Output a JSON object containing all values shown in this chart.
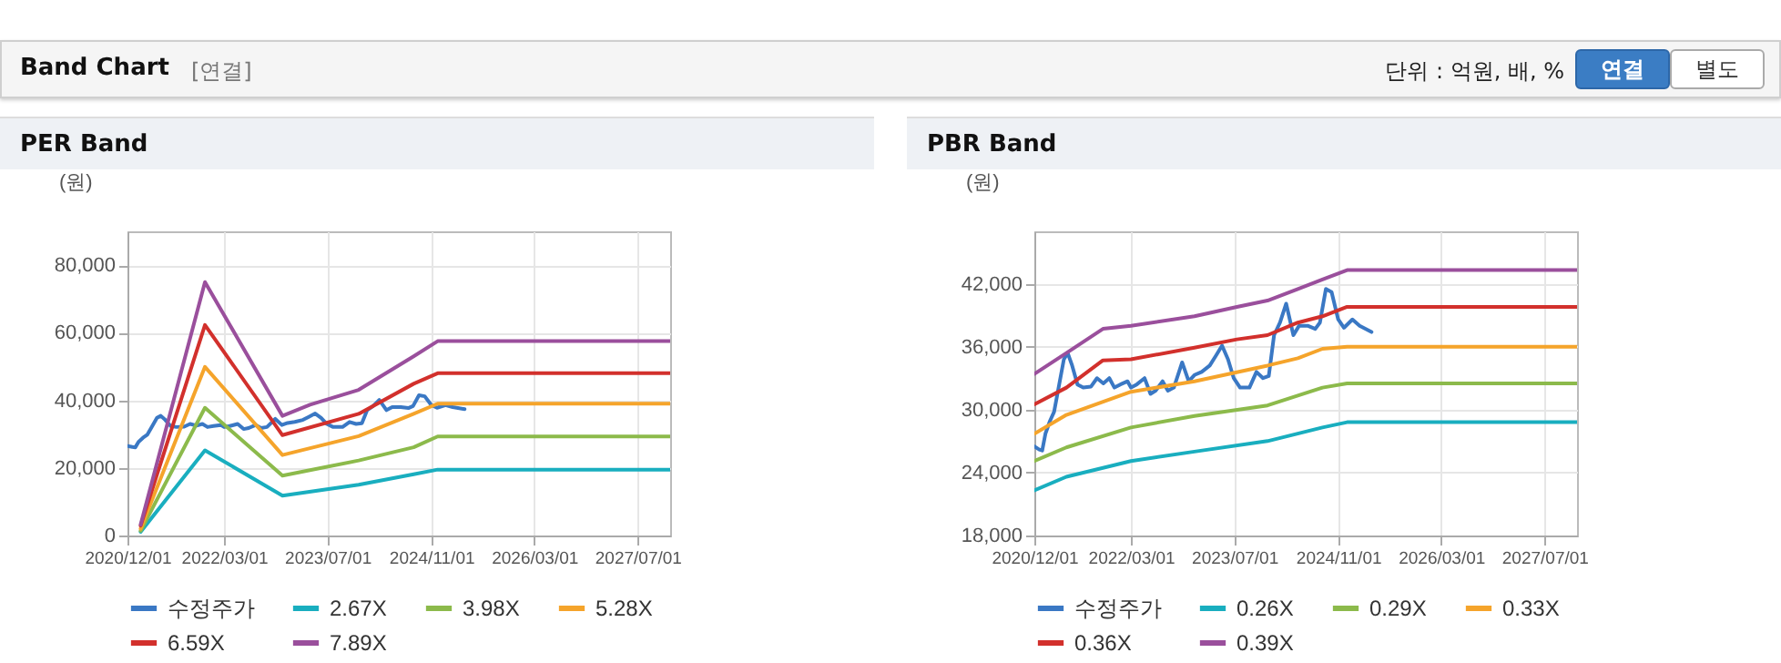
{
  "chart_data": [
    {
      "type": "line",
      "title": "PER Band",
      "ylabel": "(원)",
      "annotations": [
        "Band Chart",
        "[연결]",
        "단위 : 억원, 배, %",
        "연결",
        "별도"
      ],
      "xlim": [
        "2020-12-01",
        "2027-12-01"
      ],
      "xticks": [
        {
          "value": "2020-12-01",
          "label": "2020/12/01"
        },
        {
          "value": "2022-03-01",
          "label": "2022/03/01"
        },
        {
          "value": "2023-07-01",
          "label": "2023/07/01"
        },
        {
          "value": "2024-11-01",
          "label": "2024/11/01"
        },
        {
          "value": "2026-03-01",
          "label": "2026/03/01"
        },
        {
          "value": "2027-07-01",
          "label": "2027/07/01"
        }
      ],
      "ylim": [
        0,
        90000
      ],
      "yticks": [
        0,
        {
          "value": 20000,
          "label": "20,000"
        },
        {
          "value": 40000,
          "label": "40,000"
        },
        {
          "value": 60000,
          "label": "60,000"
        },
        {
          "value": 80000,
          "label": "80,000"
        }
      ],
      "grid": true,
      "legend": "bottom",
      "line_style": "solid",
      "marker": "none",
      "series": [
        {
          "name": "수정주가",
          "color": "#3a78c4",
          "x": [
            "2020-12-01",
            "2020-12-24",
            "2021-01-07",
            "2021-01-22",
            "2021-02-12",
            "2021-03-04",
            "2021-03-28",
            "2021-04-19",
            "2021-05-07",
            "2021-05-28",
            "2021-06-22",
            "2021-07-19",
            "2021-08-25",
            "2021-09-22",
            "2021-10-22",
            "2021-11-19",
            "2021-12-13",
            "2022-01-10",
            "2022-02-13",
            "2022-03-01",
            "2022-03-28",
            "2022-05-04",
            "2022-06-01",
            "2022-06-25",
            "2022-07-28",
            "2022-08-22",
            "2022-09-19",
            "2022-10-28",
            "2022-11-28",
            "2022-12-25",
            "2023-01-28",
            "2023-03-07",
            "2023-04-04",
            "2023-05-04",
            "2023-06-01",
            "2023-06-28",
            "2023-07-28",
            "2023-09-10",
            "2023-10-13",
            "2023-11-13",
            "2023-12-10",
            "2024-01-04",
            "2024-02-01",
            "2024-03-01",
            "2024-04-04",
            "2024-05-01",
            "2024-06-10",
            "2024-07-16",
            "2024-08-07",
            "2024-09-04",
            "2024-10-01",
            "2024-11-01",
            "2024-11-28",
            "2025-01-07",
            "2025-02-10",
            "2025-04-07"
          ],
          "values": [
            26500,
            26200,
            26100,
            27700,
            28900,
            29800,
            32400,
            34800,
            35400,
            34200,
            32400,
            32100,
            32200,
            33000,
            32500,
            33000,
            32100,
            32400,
            32700,
            32100,
            32400,
            33000,
            31500,
            31800,
            32700,
            31800,
            32100,
            34500,
            32700,
            33300,
            33600,
            34200,
            35100,
            36100,
            34800,
            33000,
            32100,
            32100,
            33600,
            33000,
            33200,
            37100,
            38300,
            40100,
            37100,
            38000,
            38000,
            37700,
            38300,
            41500,
            41200,
            38600,
            37800,
            38600,
            38000,
            37400
          ]
        },
        {
          "name": "2.67X",
          "color": "#19aebf",
          "x": [
            "2021-02-01",
            "2021-12-01",
            "2022-12-01",
            "2023-11-25",
            "2024-08-10",
            "2024-12-01",
            "2027-12-01"
          ],
          "values": [
            1100,
            25200,
            11800,
            15000,
            18100,
            19500,
            19500
          ]
        },
        {
          "name": "3.98X",
          "color": "#8cba4b",
          "x": [
            "2021-02-01",
            "2021-12-01",
            "2022-12-01",
            "2023-11-25",
            "2024-08-10",
            "2024-12-01",
            "2027-12-01"
          ],
          "values": [
            1400,
            37800,
            17700,
            22200,
            26100,
            29300,
            29300
          ]
        },
        {
          "name": "5.28X",
          "color": "#f5a42b",
          "x": [
            "2021-02-01",
            "2021-12-01",
            "2022-12-01",
            "2023-11-25",
            "2024-08-10",
            "2024-12-01",
            "2027-12-01"
          ],
          "values": [
            2000,
            49900,
            23800,
            29400,
            36000,
            39000,
            39000
          ]
        },
        {
          "name": "6.59X",
          "color": "#d2302c",
          "x": [
            "2021-02-01",
            "2021-12-01",
            "2022-12-01",
            "2023-11-25",
            "2024-08-10",
            "2024-12-01",
            "2027-12-01"
          ],
          "values": [
            2900,
            62300,
            29700,
            36000,
            44900,
            48000,
            48000
          ]
        },
        {
          "name": "7.89X",
          "color": "#9a4f9c",
          "x": [
            "2021-02-01",
            "2021-12-01",
            "2022-12-01",
            "2023-04-10",
            "2023-11-25",
            "2024-08-10",
            "2024-12-01",
            "2027-12-01"
          ],
          "values": [
            3200,
            75000,
            35400,
            38700,
            43100,
            53000,
            57500,
            57500
          ]
        }
      ]
    },
    {
      "type": "line",
      "title": "PBR Band",
      "ylabel": "(원)",
      "xlim": [
        "2020-12-01",
        "2027-12-01"
      ],
      "xticks": [
        {
          "value": "2020-12-01",
          "label": "2020/12/01"
        },
        {
          "value": "2022-03-01",
          "label": "2022/03/01"
        },
        {
          "value": "2023-07-01",
          "label": "2023/07/01"
        },
        {
          "value": "2024-11-01",
          "label": "2024/11/01"
        },
        {
          "value": "2026-03-01",
          "label": "2026/03/01"
        },
        {
          "value": "2027-07-01",
          "label": "2027/07/01"
        }
      ],
      "ylim": [
        18000,
        47000
      ],
      "yticks": [
        {
          "value": 18000,
          "label": "18,000"
        },
        {
          "value": 24000,
          "label": "24,000"
        },
        {
          "value": 30000,
          "label": "30,000"
        },
        {
          "value": 36000,
          "label": "36,000"
        },
        {
          "value": 42000,
          "label": "42,000"
        }
      ],
      "grid": true,
      "legend": "bottom",
      "line_style": "solid",
      "marker": "none",
      "series": [
        {
          "name": "수정주가",
          "color": "#3a78c4",
          "x": [
            "2020-12-01",
            "2020-12-24",
            "2021-01-07",
            "2021-01-22",
            "2021-02-12",
            "2021-03-04",
            "2021-03-28",
            "2021-04-19",
            "2021-05-07",
            "2021-05-28",
            "2021-06-22",
            "2021-07-19",
            "2021-08-25",
            "2021-09-22",
            "2021-10-22",
            "2021-11-19",
            "2021-12-13",
            "2022-01-10",
            "2022-02-13",
            "2022-03-01",
            "2022-03-28",
            "2022-05-04",
            "2022-06-01",
            "2022-06-25",
            "2022-07-28",
            "2022-08-22",
            "2022-09-19",
            "2022-10-28",
            "2022-11-28",
            "2022-12-25",
            "2023-01-28",
            "2023-03-07",
            "2023-04-04",
            "2023-05-04",
            "2023-06-01",
            "2023-06-28",
            "2023-07-28",
            "2023-09-10",
            "2023-10-13",
            "2023-11-13",
            "2023-12-10",
            "2024-01-04",
            "2024-02-01",
            "2024-03-01",
            "2024-04-04",
            "2024-05-01",
            "2024-06-10",
            "2024-07-16",
            "2024-08-07",
            "2024-09-04",
            "2024-10-01",
            "2024-11-01",
            "2024-11-28",
            "2025-01-07",
            "2025-02-10",
            "2025-04-07"
          ],
          "values": [
            26500,
            26200,
            26100,
            27700,
            28900,
            29800,
            32400,
            34800,
            35400,
            34200,
            32400,
            32100,
            32200,
            33000,
            32500,
            33000,
            32100,
            32400,
            32700,
            32100,
            32400,
            33000,
            31500,
            31800,
            32700,
            31800,
            32100,
            34500,
            32700,
            33300,
            33600,
            34200,
            35100,
            36100,
            34800,
            33000,
            32100,
            32100,
            33600,
            33000,
            33200,
            37100,
            38300,
            40100,
            37100,
            38000,
            38000,
            37700,
            38300,
            41500,
            41200,
            38600,
            37800,
            38600,
            38000,
            37400
          ]
        },
        {
          "name": "0.26X",
          "color": "#19aebf",
          "x": [
            "2020-12-01",
            "2021-05-01",
            "2022-03-01",
            "2022-12-25",
            "2023-12-04",
            "2024-08-19",
            "2024-12-13",
            "2027-12-01"
          ],
          "values": [
            22300,
            23600,
            25100,
            26000,
            27000,
            28300,
            28800,
            28800
          ]
        },
        {
          "name": "0.29X",
          "color": "#8cba4b",
          "x": [
            "2020-12-01",
            "2021-05-01",
            "2022-03-01",
            "2022-12-25",
            "2023-12-04",
            "2024-08-19",
            "2024-12-13",
            "2027-12-01"
          ],
          "values": [
            25100,
            26400,
            28300,
            29400,
            30400,
            32100,
            32500,
            32500
          ]
        },
        {
          "name": "0.33X",
          "color": "#f5a42b",
          "x": [
            "2020-12-01",
            "2021-05-01",
            "2022-03-01",
            "2022-12-25",
            "2023-12-04",
            "2024-04-25",
            "2024-08-19",
            "2024-12-13",
            "2027-12-01"
          ],
          "values": [
            27700,
            29500,
            31700,
            32700,
            34200,
            34900,
            35800,
            36000,
            36000
          ]
        },
        {
          "name": "0.36X",
          "color": "#d2302c",
          "x": [
            "2020-12-01",
            "2021-05-01",
            "2021-10-20",
            "2022-03-01",
            "2022-12-25",
            "2023-07-13",
            "2023-12-04",
            "2024-04-25",
            "2024-08-19",
            "2024-12-13",
            "2027-12-01"
          ],
          "values": [
            30500,
            32100,
            34700,
            34800,
            35900,
            36700,
            37100,
            38300,
            38900,
            39800,
            39800
          ]
        },
        {
          "name": "0.39X",
          "color": "#9a4f9c",
          "x": [
            "2020-12-01",
            "2021-05-01",
            "2021-10-20",
            "2022-03-01",
            "2022-12-25",
            "2023-07-13",
            "2023-12-04",
            "2024-04-25",
            "2024-08-19",
            "2024-12-13",
            "2027-12-01"
          ],
          "values": [
            33400,
            35400,
            37700,
            38000,
            38900,
            39800,
            40400,
            41500,
            42400,
            43300,
            43300
          ]
        }
      ]
    }
  ]
}
